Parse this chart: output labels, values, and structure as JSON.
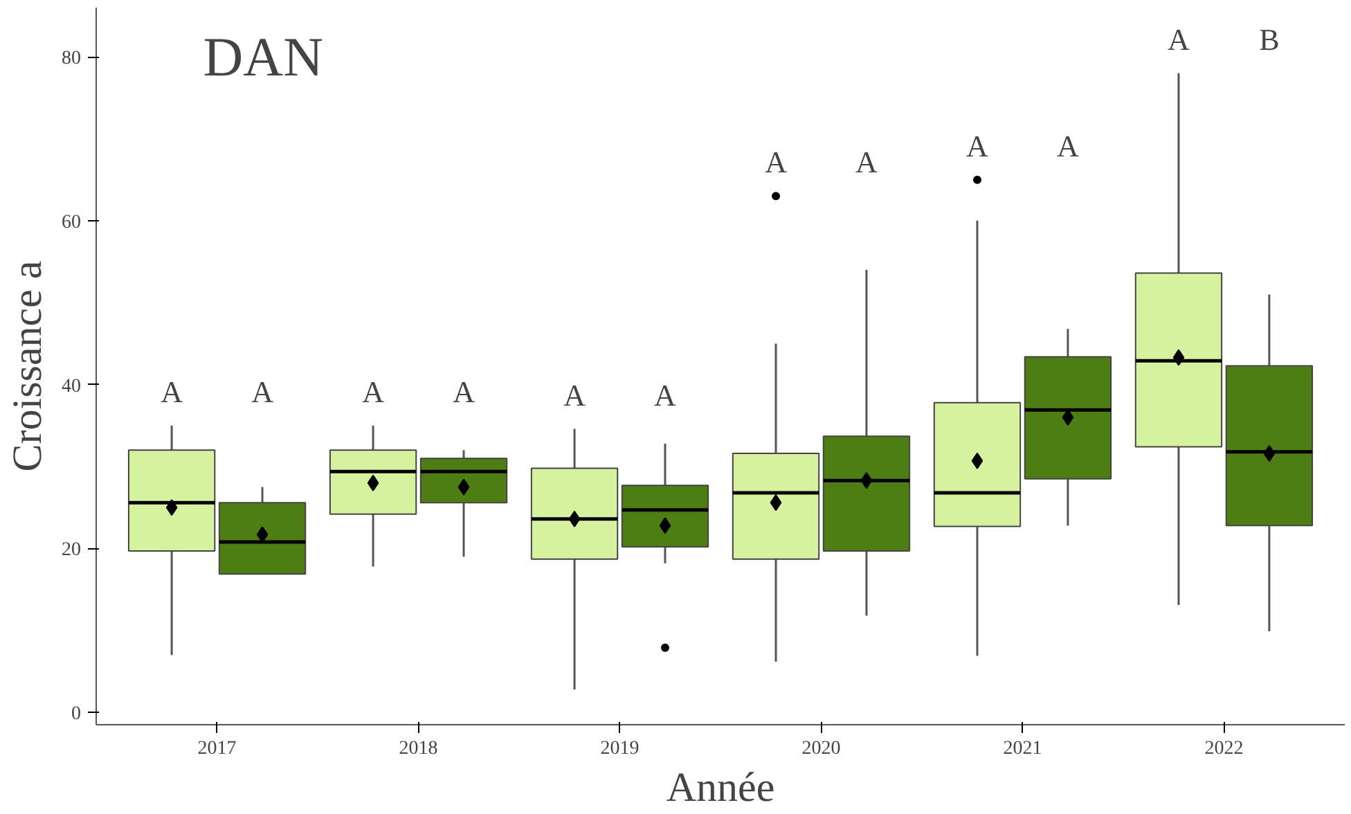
{
  "chart_data": {
    "type": "box",
    "xlabel": "Année",
    "ylabel": "Croissance a",
    "categories": [
      "2017",
      "2018",
      "2019",
      "2020",
      "2021",
      "2022"
    ],
    "ylim": [
      -1.5,
      86
    ],
    "yticks": [
      0,
      20,
      40,
      60,
      80
    ],
    "grid": false,
    "marker": "diamond",
    "series": [
      {
        "color": "#d6f2a0",
        "boxes": [
          {
            "low": 7,
            "q1": 19.7,
            "median": 25.6,
            "q3": 32,
            "high": 35,
            "mean": 25
          },
          {
            "low": 17.8,
            "q1": 24.2,
            "median": 29.4,
            "q3": 32,
            "high": 35,
            "mean": 28
          },
          {
            "low": 2.8,
            "q1": 18.7,
            "median": 23.6,
            "q3": 29.8,
            "high": 34.6,
            "mean": 23.6
          },
          {
            "low": 6.2,
            "q1": 18.7,
            "median": 26.8,
            "q3": 31.6,
            "high": 45,
            "mean": 25.6,
            "outliers": [
              63
            ]
          },
          {
            "low": 6.9,
            "q1": 22.7,
            "median": 26.8,
            "q3": 37.8,
            "high": 60,
            "mean": 30.7,
            "outliers": [
              65
            ]
          },
          {
            "low": 13.1,
            "q1": 32.4,
            "median": 42.9,
            "q3": 53.6,
            "high": 78,
            "mean": 43.3
          }
        ]
      },
      {
        "color": "#4e7d14",
        "boxes": [
          {
            "low": 16.9,
            "q1": 16.9,
            "median": 20.8,
            "q3": 25.6,
            "high": 27.5,
            "mean": 21.7
          },
          {
            "low": 19,
            "q1": 25.6,
            "median": 29.4,
            "q3": 31,
            "high": 32,
            "mean": 27.5
          },
          {
            "low": 18.2,
            "q1": 20.2,
            "median": 24.7,
            "q3": 27.7,
            "high": 32.8,
            "mean": 22.8,
            "outliers": [
              7.9
            ]
          },
          {
            "low": 11.8,
            "q1": 19.7,
            "median": 28.3,
            "q3": 33.7,
            "high": 54,
            "mean": 28.3
          },
          {
            "low": 22.8,
            "q1": 28.5,
            "median": 36.9,
            "q3": 43.4,
            "high": 46.8,
            "mean": 36
          },
          {
            "low": 9.9,
            "q1": 22.8,
            "median": 31.8,
            "q3": 42.3,
            "high": 51,
            "mean": 31.6
          }
        ]
      }
    ],
    "annotations": [
      "DAN",
      "A",
      "A",
      "A",
      "A",
      "A",
      "A",
      "A",
      "A",
      "A",
      "A",
      "A",
      "B"
    ]
  }
}
